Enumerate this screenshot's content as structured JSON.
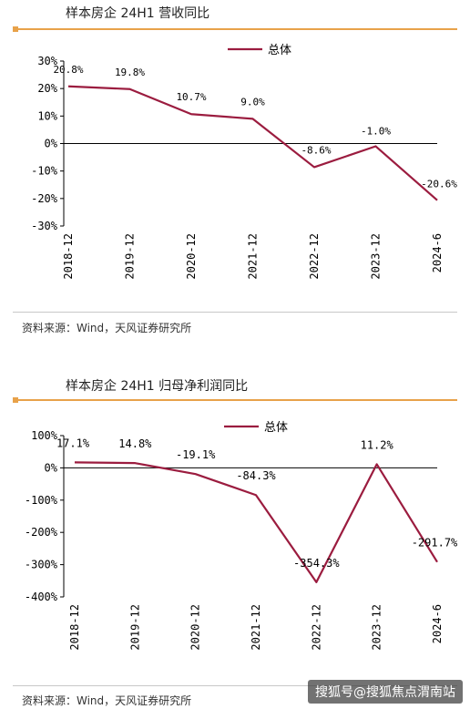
{
  "charts": [
    {
      "title": "样本房企 24H1 营收同比",
      "source": "资料来源：Wind，天风证券研究所"
    },
    {
      "title": "样本房企 24H1 归母净利润同比",
      "source": "资料来源：Wind，天风证券研究所"
    }
  ],
  "watermark": "搜狐号@搜狐焦点渭南站",
  "colors": {
    "line": "#9b1c3f",
    "accent": "#e8a24a",
    "axis": "#000000"
  },
  "chart_data": [
    {
      "type": "line",
      "title": "样本房企 24H1 营收同比",
      "categories": [
        "2018-12",
        "2019-12",
        "2020-12",
        "2021-12",
        "2022-12",
        "2023-12",
        "2024-6"
      ],
      "series": [
        {
          "name": "总体",
          "values": [
            20.8,
            19.8,
            10.7,
            9.0,
            -8.6,
            -1.0,
            -20.6
          ],
          "labels": [
            "20.8%",
            "19.8%",
            "10.7%",
            "9.0%",
            "-8.6%",
            "-1.0%",
            "-20.6%"
          ]
        }
      ],
      "yticks": [
        "30%",
        "20%",
        "10%",
        "0%",
        "-10%",
        "-20%",
        "-30%"
      ],
      "ylim": [
        -30,
        30
      ],
      "xlabel": "",
      "ylabel": "",
      "legend": "top-center",
      "grid": false
    },
    {
      "type": "line",
      "title": "样本房企 24H1 归母净利润同比",
      "categories": [
        "2018-12",
        "2019-12",
        "2020-12",
        "2021-12",
        "2022-12",
        "2023-12",
        "2024-6"
      ],
      "series": [
        {
          "name": "总体",
          "values": [
            17.1,
            14.8,
            -19.1,
            -84.3,
            -354.3,
            11.2,
            -291.7
          ],
          "labels": [
            "17.1%",
            "14.8%",
            "-19.1%",
            "-84.3%",
            "-354.3%",
            "11.2%",
            "-291.7%"
          ]
        }
      ],
      "yticks": [
        "100%",
        "0%",
        "-100%",
        "-200%",
        "-300%",
        "-400%"
      ],
      "ylim": [
        -400,
        100
      ],
      "xlabel": "",
      "ylabel": "",
      "legend": "top-center",
      "grid": false
    }
  ]
}
